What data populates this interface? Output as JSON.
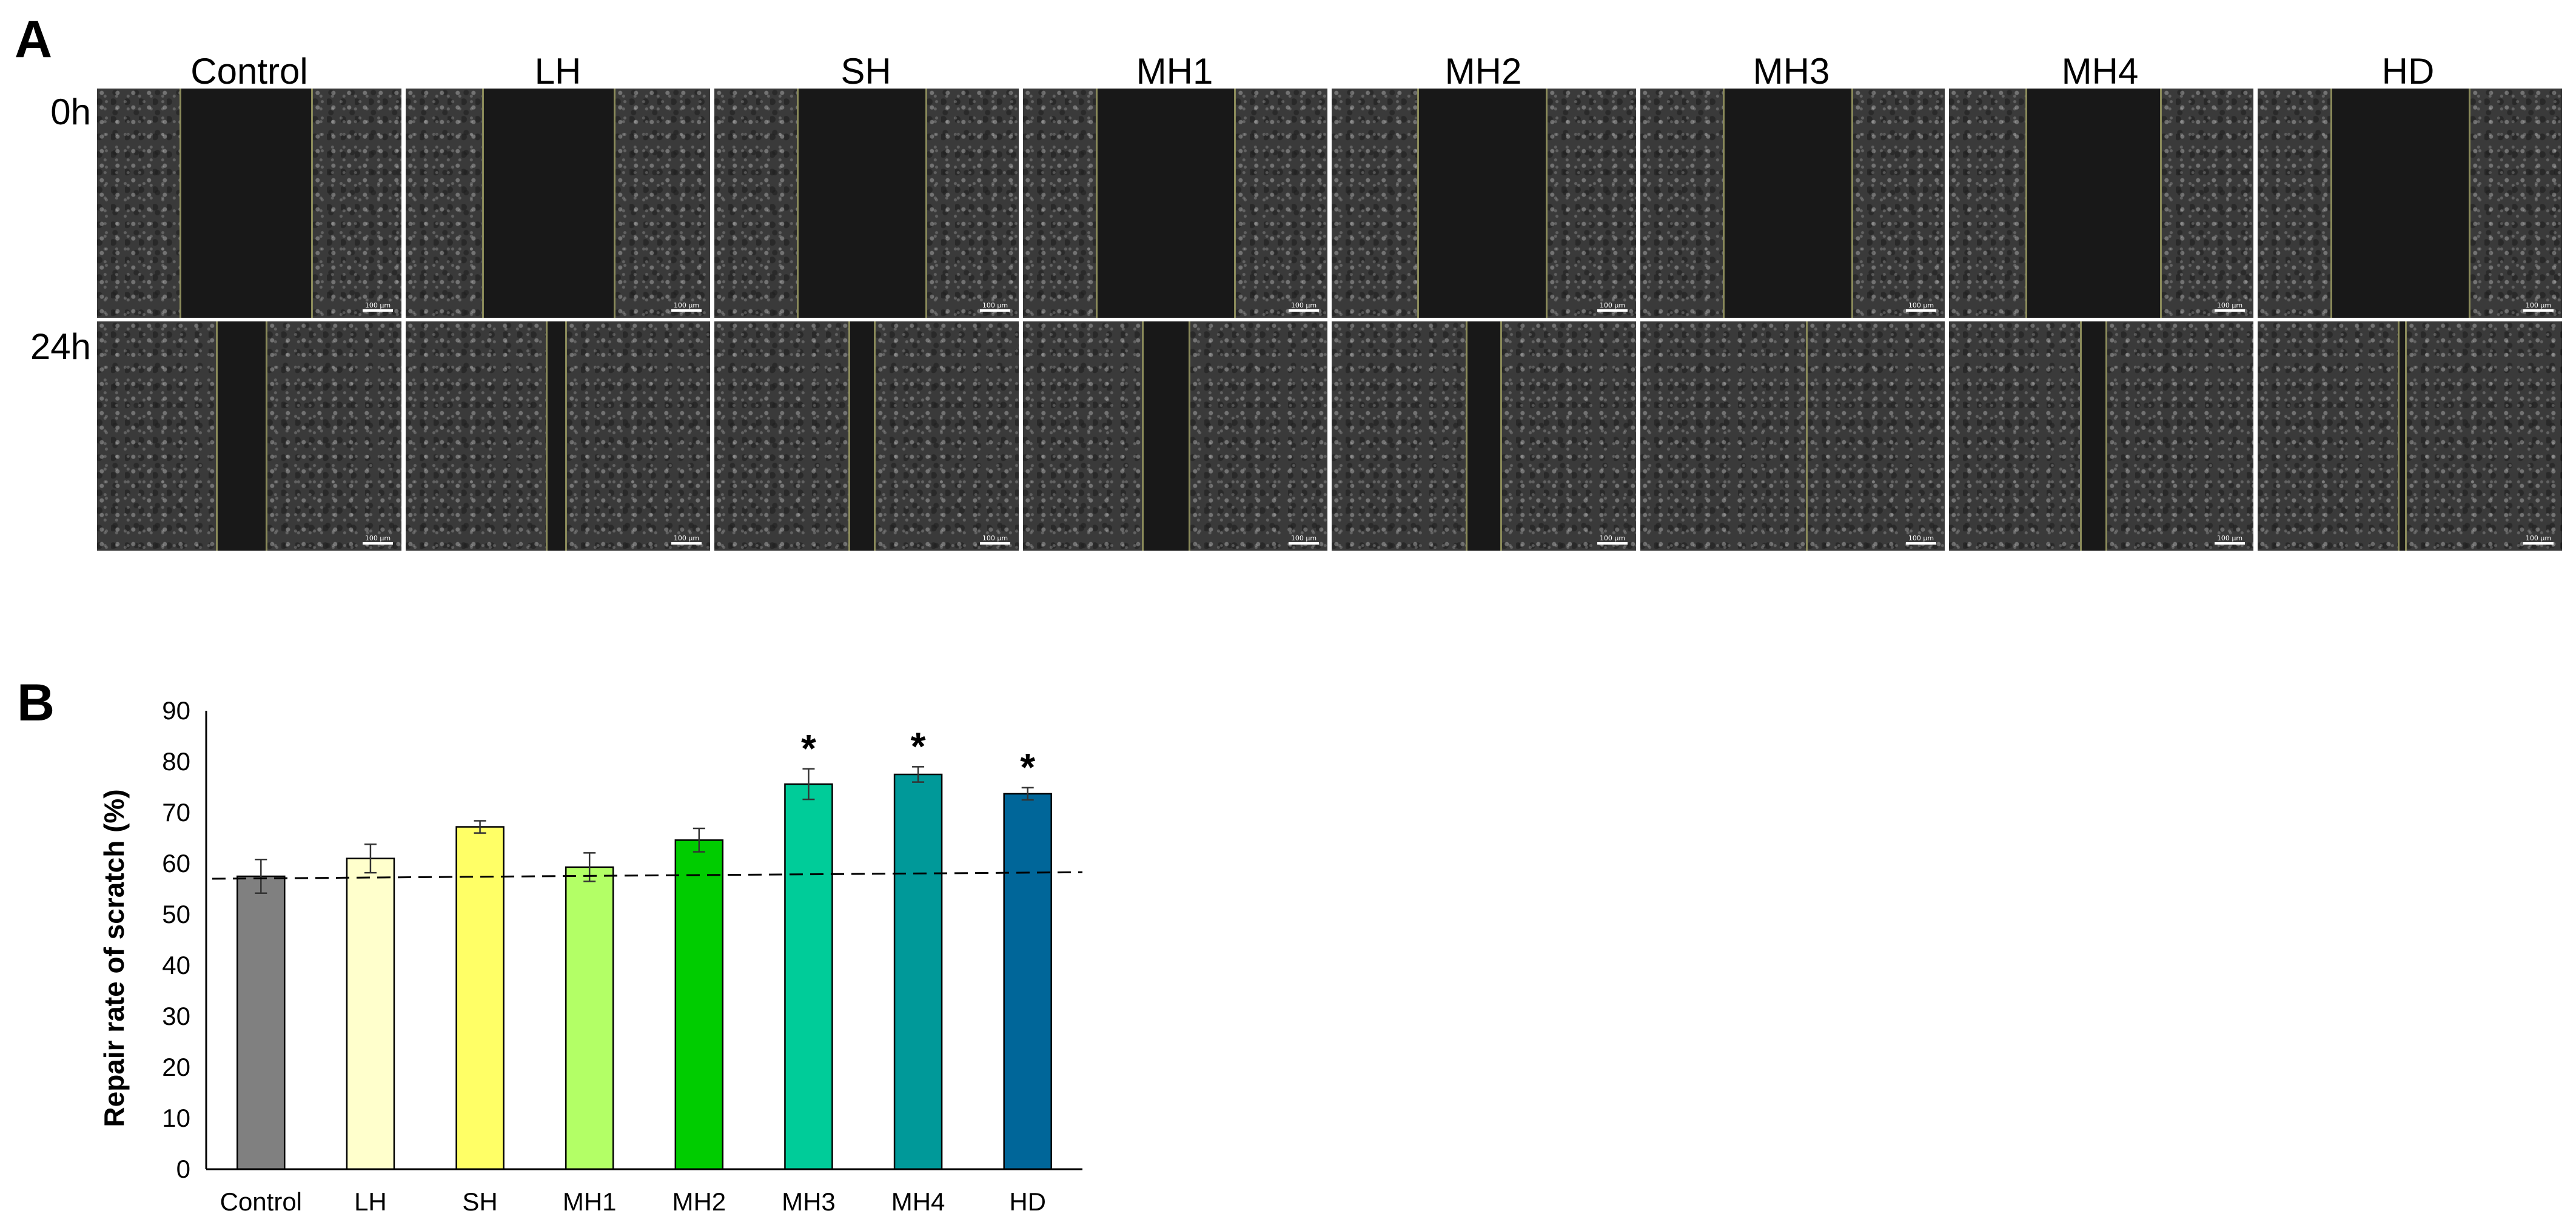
{
  "panel_a": {
    "letter": "A",
    "columns": [
      "Control",
      "LH",
      "SH",
      "MH1",
      "MH2",
      "MH3",
      "MH4",
      "HD"
    ],
    "rows": [
      "0h",
      "24h"
    ],
    "scale_bar_label": "100 µm"
  },
  "panel_b": {
    "letter": "B"
  },
  "chart_data": {
    "type": "bar",
    "categories": [
      "Control",
      "LH",
      "SH",
      "MH1",
      "MH2",
      "MH3",
      "MH4",
      "HD"
    ],
    "values": [
      57.5,
      61,
      67.2,
      59.3,
      64.6,
      75.6,
      77.5,
      73.7
    ],
    "errors": [
      3.3,
      2.8,
      1.2,
      2.8,
      2.3,
      3.0,
      1.5,
      1.2
    ],
    "colors": [
      "#808080",
      "#ffffcc",
      "#ffff66",
      "#b3ff66",
      "#00cc00",
      "#00cc99",
      "#009999",
      "#006699"
    ],
    "significance": [
      "",
      "",
      "",
      "",
      "",
      "*",
      "*",
      "*"
    ],
    "reference_line": 57.5,
    "reference_line_style": "dashed",
    "xlabel": "",
    "ylabel": "Repair rate of scratch (%)",
    "ylim": [
      0,
      90
    ],
    "yticks": [
      0,
      10,
      20,
      30,
      40,
      50,
      60,
      70,
      80,
      90
    ],
    "grid": false
  }
}
